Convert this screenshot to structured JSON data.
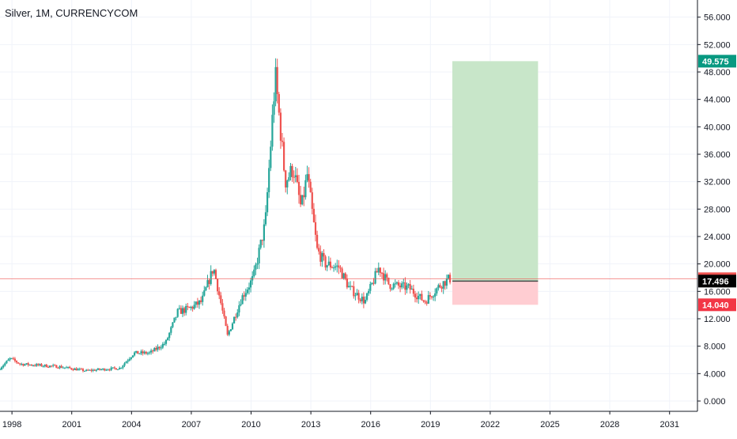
{
  "header": {
    "title": "Silver, 1M, CURRENCYCOM"
  },
  "colors": {
    "up": "#26a69a",
    "down": "#ef5350",
    "profit_zone": "#c8e6c9",
    "loss_zone": "#ffcdd2",
    "grid": "#f0f3fa",
    "price_line": "#ef5350",
    "badge_target": "#089981",
    "badge_current": "#ef5350",
    "badge_entry": "#000000",
    "badge_stop": "#f23645"
  },
  "chart_data": {
    "type": "candlestick",
    "title": "Silver, 1M, CURRENCYCOM",
    "xlabel": "",
    "ylabel": "",
    "xlim": [
      1997.4,
      2032.4
    ],
    "ylim": [
      -1.5,
      58.5
    ],
    "grid": true,
    "x_ticks": [
      "1998",
      "2001",
      "2004",
      "2007",
      "2010",
      "2013",
      "2016",
      "2019",
      "2022",
      "2025",
      "2028",
      "2031"
    ],
    "y_ticks": [
      "0.000",
      "4.000",
      "8.000",
      "12.000",
      "16.000",
      "20.000",
      "24.000",
      "28.000",
      "32.000",
      "36.000",
      "40.000",
      "44.000",
      "48.000",
      "52.000",
      "56.000"
    ],
    "price_path": [
      [
        1997.4,
        4.6
      ],
      [
        1998.0,
        6.2
      ],
      [
        1998.5,
        5.4
      ],
      [
        1999.5,
        5.2
      ],
      [
        2000.5,
        5.0
      ],
      [
        2001.8,
        4.4
      ],
      [
        2002.5,
        4.6
      ],
      [
        2003.5,
        4.8
      ],
      [
        2004.2,
        7.0
      ],
      [
        2005.0,
        7.0
      ],
      [
        2005.8,
        8.5
      ],
      [
        2006.4,
        13.0
      ],
      [
        2007.0,
        13.5
      ],
      [
        2007.6,
        14.5
      ],
      [
        2008.2,
        19.5
      ],
      [
        2008.9,
        9.5
      ],
      [
        2009.6,
        15.0
      ],
      [
        2010.2,
        18.0
      ],
      [
        2010.8,
        26.0
      ],
      [
        2011.3,
        47.5
      ],
      [
        2011.8,
        32.0
      ],
      [
        2012.2,
        34.0
      ],
      [
        2012.6,
        28.0
      ],
      [
        2012.9,
        33.0
      ],
      [
        2013.4,
        22.0
      ],
      [
        2013.8,
        20.0
      ],
      [
        2014.5,
        19.5
      ],
      [
        2015.0,
        16.5
      ],
      [
        2015.8,
        14.5
      ],
      [
        2016.5,
        19.5
      ],
      [
        2017.0,
        17.0
      ],
      [
        2018.0,
        16.5
      ],
      [
        2018.8,
        14.5
      ],
      [
        2019.6,
        17.0
      ],
      [
        2020.0,
        17.8
      ]
    ],
    "position": {
      "x_start": 2020.1,
      "x_end": 2024.4,
      "entry": 17.496,
      "target": 49.575,
      "stop": 14.04
    },
    "price_labels": {
      "target": "49.575",
      "current": "17.841",
      "entry": "17.496",
      "stop": "14.040"
    },
    "current_price": 17.841
  }
}
